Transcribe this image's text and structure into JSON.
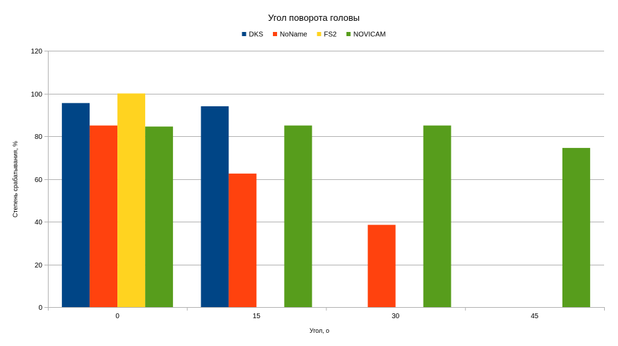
{
  "chart_data": {
    "type": "bar",
    "title": "Угол поворота головы",
    "xlabel": "Угол, о",
    "ylabel": "Степень срабатывания, %",
    "categories": [
      "0",
      "15",
      "30",
      "45"
    ],
    "ylim": [
      0,
      120
    ],
    "yticks": [
      0,
      20,
      40,
      60,
      80,
      100,
      120
    ],
    "grid": true,
    "legend_position": "top",
    "series": [
      {
        "name": "DKS",
        "color": "#004586",
        "values": [
          95.5,
          94,
          null,
          null
        ]
      },
      {
        "name": "NoName",
        "color": "#ff420e",
        "values": [
          85,
          62.5,
          38.5,
          null
        ]
      },
      {
        "name": "FS2",
        "color": "#ffd320",
        "values": [
          100,
          null,
          null,
          null
        ]
      },
      {
        "name": "NOVICAM",
        "color": "#579d1c",
        "values": [
          84.5,
          85,
          85,
          74.5
        ]
      }
    ]
  }
}
